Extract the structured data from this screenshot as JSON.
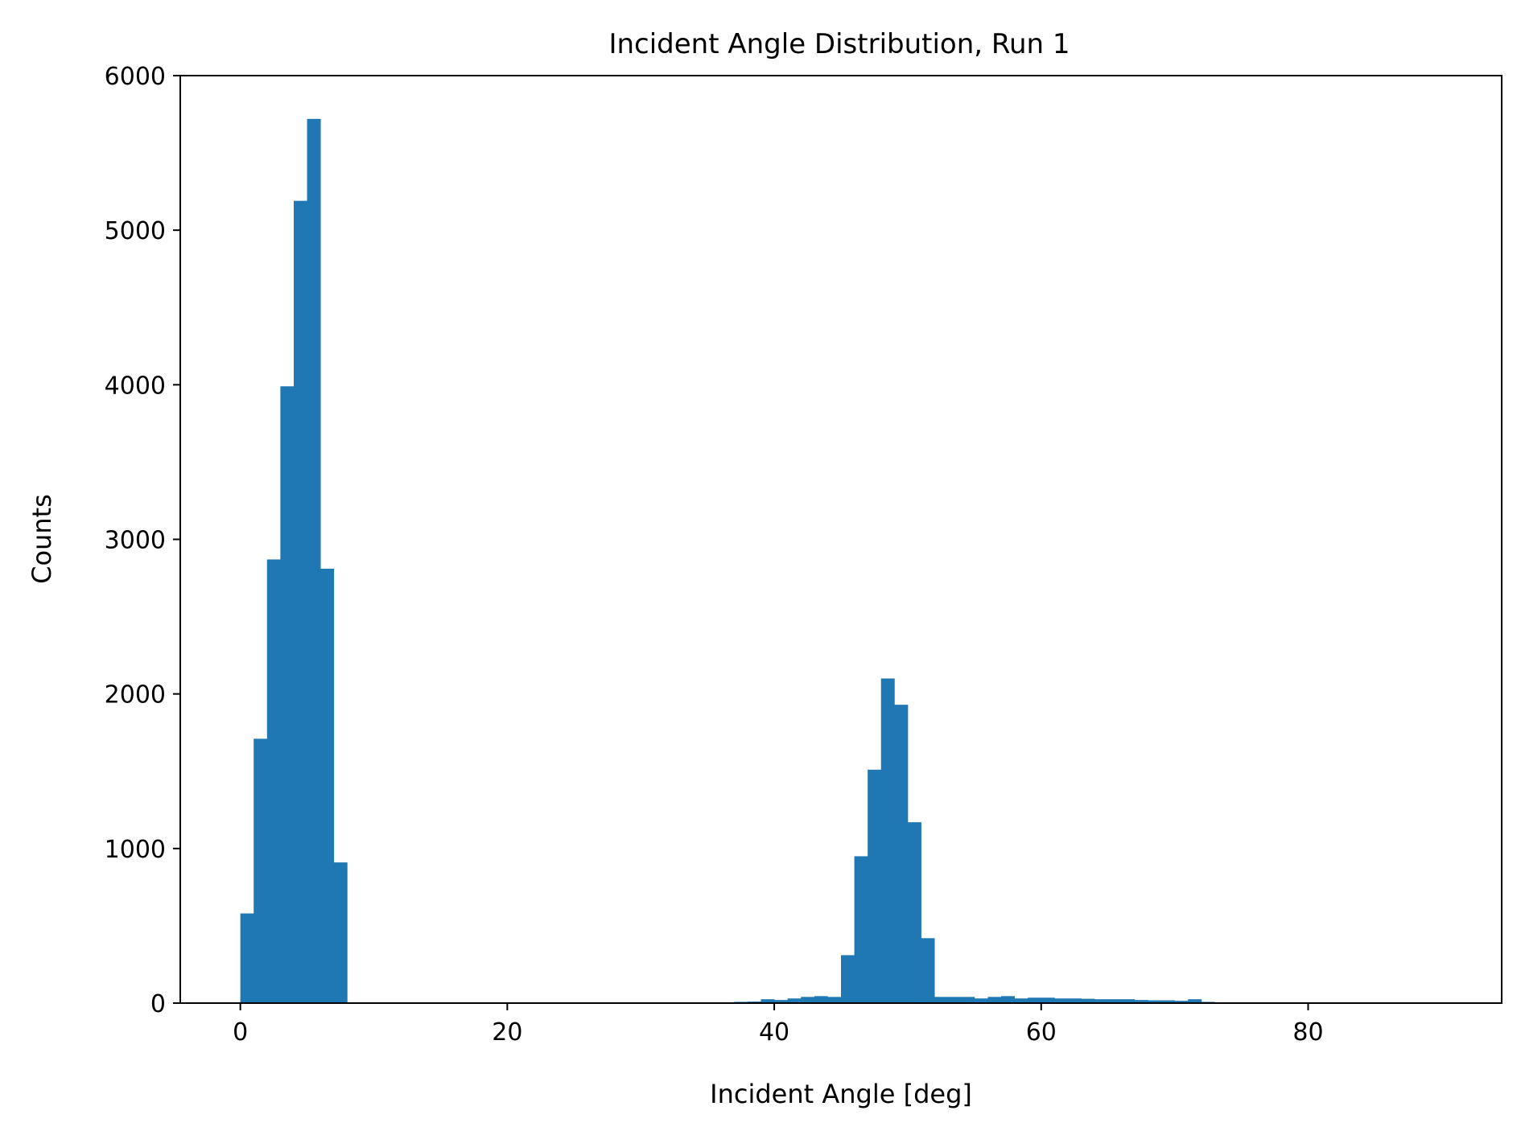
{
  "chart_data": {
    "type": "bar",
    "title": "Incident Angle Distribution, Run 1",
    "xlabel": "Incident Angle [deg]",
    "ylabel": "Counts",
    "xlim": [
      -4.5,
      94.5
    ],
    "ylim": [
      0,
      6000
    ],
    "xticks": [
      0,
      20,
      40,
      60,
      80
    ],
    "yticks": [
      0,
      1000,
      2000,
      3000,
      4000,
      5000,
      6000
    ],
    "grid": false,
    "legend": "none",
    "bin_width": 1,
    "bin_start": 0,
    "bar_color": "#1f77b4",
    "values": [
      580,
      1710,
      2870,
      3990,
      5190,
      5720,
      2810,
      910,
      0,
      0,
      0,
      0,
      0,
      0,
      0,
      0,
      0,
      0,
      0,
      0,
      0,
      0,
      0,
      0,
      0,
      0,
      0,
      0,
      0,
      0,
      0,
      0,
      0,
      0,
      0,
      0,
      0,
      8,
      10,
      25,
      20,
      30,
      40,
      45,
      40,
      310,
      950,
      1510,
      2100,
      1930,
      1170,
      420,
      40,
      40,
      40,
      30,
      40,
      45,
      30,
      35,
      35,
      30,
      30,
      28,
      25,
      25,
      25,
      20,
      18,
      18,
      15,
      25,
      8,
      5
    ]
  }
}
